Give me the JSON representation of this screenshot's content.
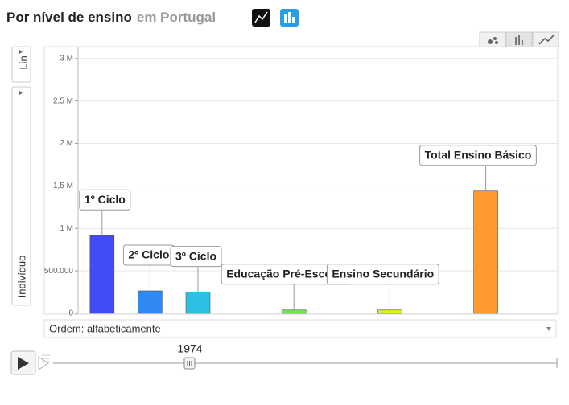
{
  "chart_data": {
    "type": "bar",
    "title": "Por nível de ensino",
    "subtitle": "em Portugal",
    "y_label": "Indivíduo",
    "categories": [
      "1º Ciclo",
      "2º Ciclo",
      "3º Ciclo",
      null,
      "Educação Pré-Escolar",
      null,
      "Ensino Secundário",
      null,
      "Total Ensino Básico",
      null
    ],
    "values": [
      915000,
      265000,
      250000,
      null,
      40000,
      null,
      40000,
      null,
      1440000,
      null
    ],
    "colors": [
      "#3f4cf7",
      "#2f8af3",
      "#2ebfe4",
      null,
      "#66ee44",
      null,
      "#ddee22",
      null,
      "#ff9a2e",
      null
    ],
    "ylim": [
      0,
      3140000
    ],
    "yticks": [
      0,
      {
        "value": 500000,
        "label": "500.000"
      },
      {
        "value": 1000000,
        "label": "1 M"
      },
      {
        "value": 1500000,
        "label": "1,5 M"
      },
      {
        "value": 2000000,
        "label": "2 M"
      },
      {
        "value": 2500000,
        "label": "2,5 M"
      },
      {
        "value": 3000000,
        "label": "3 M"
      }
    ],
    "grid": true,
    "log_scale": false
  },
  "ui": {
    "scale_button": "Lin",
    "order_dropdown": "Ordem: alfabeticamente",
    "year": "1974"
  }
}
